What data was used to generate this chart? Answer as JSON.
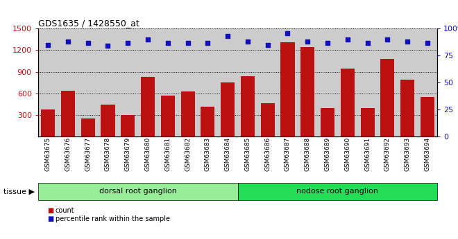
{
  "title": "GDS1635 / 1428550_at",
  "categories": [
    "GSM63675",
    "GSM63676",
    "GSM63677",
    "GSM63678",
    "GSM63679",
    "GSM63680",
    "GSM63681",
    "GSM63682",
    "GSM63683",
    "GSM63684",
    "GSM63685",
    "GSM63686",
    "GSM63687",
    "GSM63688",
    "GSM63689",
    "GSM63690",
    "GSM63691",
    "GSM63692",
    "GSM63693",
    "GSM63694"
  ],
  "count_values": [
    370,
    630,
    250,
    440,
    300,
    830,
    565,
    625,
    410,
    750,
    840,
    460,
    1310,
    1240,
    390,
    940,
    390,
    1080,
    790,
    545
  ],
  "percentile_values": [
    85,
    88,
    87,
    84,
    87,
    90,
    87,
    87,
    87,
    93,
    88,
    85,
    96,
    88,
    87,
    90,
    87,
    90,
    88,
    87
  ],
  "tissue_groups": [
    {
      "label": "dorsal root ganglion",
      "start": 0,
      "end": 9,
      "color": "#98ee98"
    },
    {
      "label": "nodose root ganglion",
      "start": 10,
      "end": 19,
      "color": "#22dd55"
    }
  ],
  "ylim_left": [
    0,
    1500
  ],
  "ylim_right": [
    0,
    100
  ],
  "yticks_left": [
    300,
    600,
    900,
    1200,
    1500
  ],
  "yticks_right": [
    0,
    25,
    50,
    75,
    100
  ],
  "bar_color": "#bb1111",
  "dot_color": "#1111bb",
  "bg_color": "#cccccc",
  "legend_count_color": "#bb1111",
  "legend_pct_color": "#1111bb"
}
